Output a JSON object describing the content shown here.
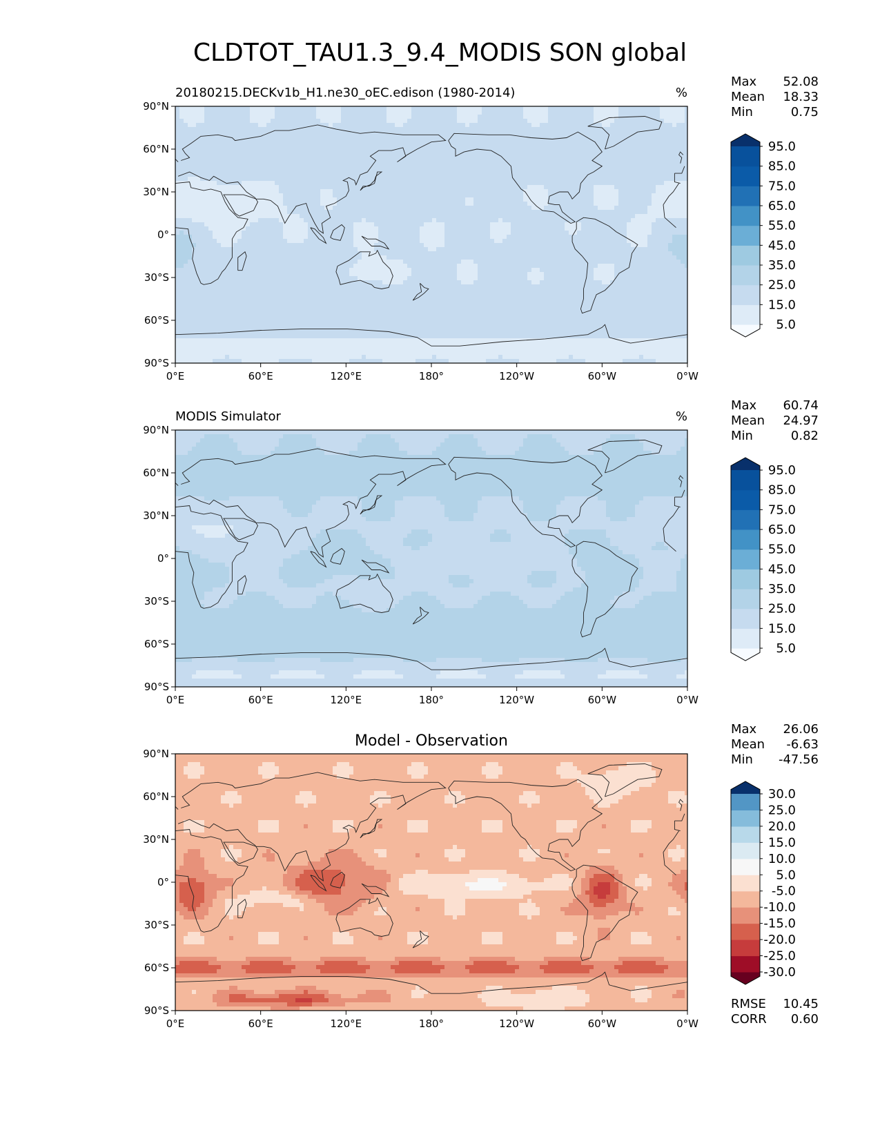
{
  "figure": {
    "title": "CLDTOT_TAU1.3_9.4_MODIS SON global"
  },
  "stat_labels": {
    "max": "Max",
    "mean": "Mean",
    "min": "Min",
    "rmse": "RMSE",
    "corr": "CORR"
  },
  "chart_data": [
    {
      "type": "heatmap",
      "title": "20180215.DECKv1b_H1.ne30_oEC.edison (1980-2014)",
      "units": "%",
      "stats": {
        "max": "52.08",
        "mean": "18.33",
        "min": "0.75"
      },
      "colorbar": {
        "levels": [
          "5.0",
          "15.0",
          "25.0",
          "35.0",
          "45.0",
          "55.0",
          "65.0",
          "75.0",
          "85.0",
          "95.0"
        ],
        "extend": "both",
        "cmap": "Blues"
      },
      "x_ticks": [
        "0°E",
        "60°E",
        "120°E",
        "180°",
        "120°W",
        "60°W",
        "0°W"
      ],
      "y_ticks": [
        "90°N",
        "60°N",
        "30°N",
        "0°",
        "30°S",
        "60°S",
        "90°S"
      ],
      "xlim": [
        0,
        360
      ],
      "ylim": [
        -90,
        90
      ]
    },
    {
      "type": "heatmap",
      "title": "MODIS Simulator",
      "units": "%",
      "stats": {
        "max": "60.74",
        "mean": "24.97",
        "min": "0.82"
      },
      "colorbar": {
        "levels": [
          "5.0",
          "15.0",
          "25.0",
          "35.0",
          "45.0",
          "55.0",
          "65.0",
          "75.0",
          "85.0",
          "95.0"
        ],
        "extend": "both",
        "cmap": "Blues"
      },
      "x_ticks": [
        "0°E",
        "60°E",
        "120°E",
        "180°",
        "120°W",
        "60°W",
        "0°W"
      ],
      "y_ticks": [
        "90°N",
        "60°N",
        "30°N",
        "0°",
        "30°S",
        "60°S",
        "90°S"
      ],
      "xlim": [
        0,
        360
      ],
      "ylim": [
        -90,
        90
      ]
    },
    {
      "type": "heatmap",
      "title": "Model - Observation",
      "units": "",
      "stats": {
        "max": "26.06",
        "mean": "-6.63",
        "min": "-47.56",
        "rmse": "10.45",
        "corr": "0.60"
      },
      "colorbar": {
        "levels": [
          "-30.0",
          "-25.0",
          "-20.0",
          "-15.0",
          "-10.0",
          "-5.0",
          "5.0",
          "10.0",
          "15.0",
          "20.0",
          "25.0",
          "30.0"
        ],
        "extend": "both",
        "cmap": "RdBu"
      },
      "x_ticks": [
        "0°E",
        "60°E",
        "120°E",
        "180°",
        "120°W",
        "60°W",
        "0°W"
      ],
      "y_ticks": [
        "90°N",
        "60°N",
        "30°N",
        "0°",
        "30°S",
        "60°S",
        "90°S"
      ],
      "xlim": [
        0,
        360
      ],
      "ylim": [
        -90,
        90
      ]
    }
  ],
  "colors": {
    "blues": [
      "#f7fbff",
      "#deebf7",
      "#c6dbef",
      "#b3d3e8",
      "#9ecae1",
      "#6baed6",
      "#4292c6",
      "#2171b5",
      "#0b5ba8",
      "#08519c",
      "#08306b"
    ],
    "rdbu": [
      "#67001f",
      "#9e0d27",
      "#c63c3c",
      "#d6604d",
      "#e7917a",
      "#f4b89c",
      "#fbe0d1",
      "#f7f7f7",
      "#dbeaf2",
      "#b8d9ea",
      "#85bcdb",
      "#5296c5",
      "#2c6fae",
      "#08306b"
    ],
    "coast": "#222222"
  }
}
